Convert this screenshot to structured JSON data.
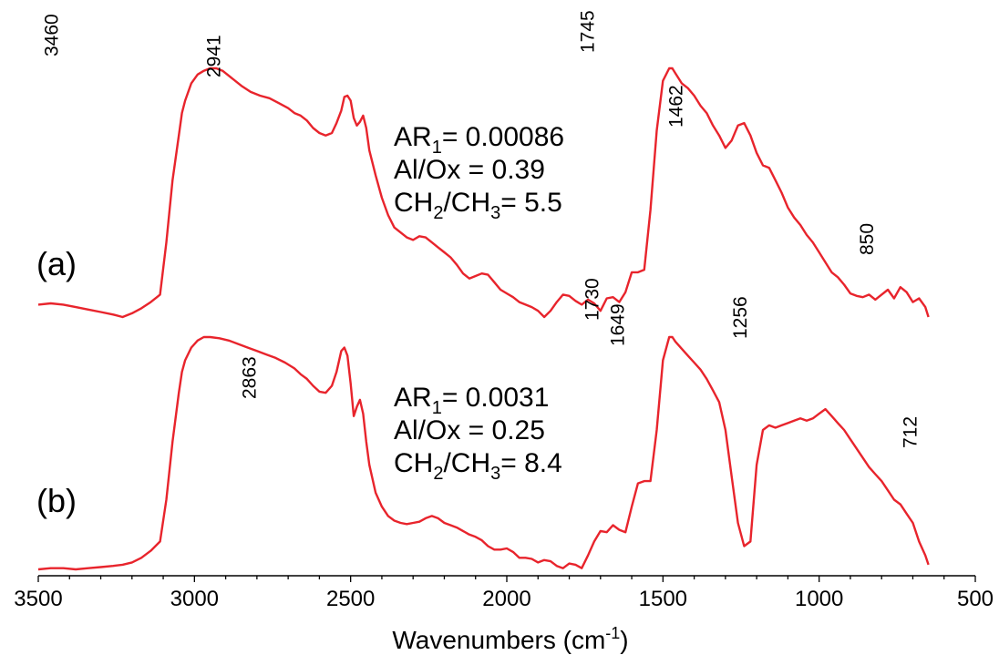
{
  "chart_data": {
    "type": "line",
    "title": "",
    "xlabel": "Wavenumbers (cm",
    "xlabel_sup": "-1",
    "xlabel_close": ")",
    "ylabel": "",
    "xlim": [
      3500,
      500
    ],
    "x_reversed": true,
    "x_ticks": [
      3500,
      3000,
      2500,
      2000,
      1500,
      1000,
      500
    ],
    "y_axis_visible": false,
    "grid": false,
    "line_color": "#e8242c",
    "series": [
      {
        "label": "(a)",
        "annotations": [
          {
            "base": "AR",
            "sub": "1",
            "rest": "= 0.00086"
          },
          {
            "base": "Al/Ox = 0.39",
            "sub": "",
            "rest": ""
          },
          {
            "base": "CH",
            "sub": "2",
            "mid": "/CH",
            "sub2": "3",
            "rest": "= 5.5"
          }
        ],
        "peak_labels": [
          "3460",
          "2941",
          "1745",
          "1462",
          "850"
        ],
        "peak_positions": [
          3460,
          2941,
          1745,
          1462,
          850
        ],
        "points": [
          [
            3500,
            0.05
          ],
          [
            3460,
            0.055
          ],
          [
            3420,
            0.05
          ],
          [
            3380,
            0.04
          ],
          [
            3340,
            0.03
          ],
          [
            3300,
            0.02
          ],
          [
            3260,
            0.01
          ],
          [
            3230,
            0.0
          ],
          [
            3200,
            0.015
          ],
          [
            3170,
            0.035
          ],
          [
            3140,
            0.06
          ],
          [
            3120,
            0.08
          ],
          [
            3110,
            0.09
          ],
          [
            3090,
            0.3
          ],
          [
            3070,
            0.55
          ],
          [
            3050,
            0.73
          ],
          [
            3040,
            0.82
          ],
          [
            3030,
            0.87
          ],
          [
            3010,
            0.94
          ],
          [
            2990,
            0.975
          ],
          [
            2970,
            0.99
          ],
          [
            2950,
            1.0
          ],
          [
            2930,
            1.0
          ],
          [
            2910,
            0.99
          ],
          [
            2880,
            0.96
          ],
          [
            2850,
            0.93
          ],
          [
            2820,
            0.905
          ],
          [
            2790,
            0.89
          ],
          [
            2760,
            0.88
          ],
          [
            2730,
            0.86
          ],
          [
            2700,
            0.84
          ],
          [
            2680,
            0.82
          ],
          [
            2660,
            0.81
          ],
          [
            2640,
            0.79
          ],
          [
            2620,
            0.76
          ],
          [
            2600,
            0.74
          ],
          [
            2580,
            0.73
          ],
          [
            2560,
            0.74
          ],
          [
            2545,
            0.78
          ],
          [
            2530,
            0.83
          ],
          [
            2520,
            0.885
          ],
          [
            2510,
            0.89
          ],
          [
            2500,
            0.87
          ],
          [
            2490,
            0.8
          ],
          [
            2480,
            0.77
          ],
          [
            2470,
            0.785
          ],
          [
            2460,
            0.81
          ],
          [
            2450,
            0.76
          ],
          [
            2440,
            0.67
          ],
          [
            2420,
            0.57
          ],
          [
            2400,
            0.48
          ],
          [
            2380,
            0.41
          ],
          [
            2360,
            0.36
          ],
          [
            2340,
            0.34
          ],
          [
            2320,
            0.32
          ],
          [
            2300,
            0.31
          ],
          [
            2280,
            0.325
          ],
          [
            2260,
            0.32
          ],
          [
            2240,
            0.3
          ],
          [
            2220,
            0.28
          ],
          [
            2200,
            0.26
          ],
          [
            2180,
            0.24
          ],
          [
            2160,
            0.21
          ],
          [
            2140,
            0.175
          ],
          [
            2120,
            0.155
          ],
          [
            2100,
            0.165
          ],
          [
            2080,
            0.175
          ],
          [
            2060,
            0.17
          ],
          [
            2040,
            0.14
          ],
          [
            2020,
            0.11
          ],
          [
            2000,
            0.095
          ],
          [
            1980,
            0.08
          ],
          [
            1960,
            0.06
          ],
          [
            1940,
            0.05
          ],
          [
            1920,
            0.04
          ],
          [
            1900,
            0.025
          ],
          [
            1880,
            0.0
          ],
          [
            1860,
            0.025
          ],
          [
            1840,
            0.06
          ],
          [
            1820,
            0.09
          ],
          [
            1800,
            0.085
          ],
          [
            1780,
            0.065
          ],
          [
            1760,
            0.05
          ],
          [
            1740,
            0.07
          ],
          [
            1720,
            0.055
          ],
          [
            1700,
            0.025
          ],
          [
            1680,
            0.075
          ],
          [
            1660,
            0.08
          ],
          [
            1640,
            0.06
          ],
          [
            1620,
            0.1
          ],
          [
            1600,
            0.18
          ],
          [
            1580,
            0.18
          ],
          [
            1560,
            0.19
          ],
          [
            1540,
            0.43
          ],
          [
            1520,
            0.75
          ],
          [
            1500,
            0.95
          ],
          [
            1480,
            1.0
          ],
          [
            1470,
            1.0
          ],
          [
            1460,
            0.98
          ],
          [
            1440,
            0.94
          ],
          [
            1420,
            0.92
          ],
          [
            1400,
            0.89
          ],
          [
            1380,
            0.85
          ],
          [
            1360,
            0.82
          ],
          [
            1340,
            0.77
          ],
          [
            1320,
            0.73
          ],
          [
            1300,
            0.68
          ],
          [
            1280,
            0.71
          ],
          [
            1260,
            0.77
          ],
          [
            1240,
            0.78
          ],
          [
            1220,
            0.73
          ],
          [
            1200,
            0.66
          ],
          [
            1180,
            0.61
          ],
          [
            1160,
            0.6
          ],
          [
            1140,
            0.55
          ],
          [
            1120,
            0.5
          ],
          [
            1100,
            0.44
          ],
          [
            1080,
            0.4
          ],
          [
            1060,
            0.37
          ],
          [
            1040,
            0.33
          ],
          [
            1020,
            0.3
          ],
          [
            1000,
            0.26
          ],
          [
            980,
            0.22
          ],
          [
            960,
            0.18
          ],
          [
            940,
            0.16
          ],
          [
            920,
            0.13
          ],
          [
            900,
            0.095
          ],
          [
            880,
            0.085
          ],
          [
            860,
            0.08
          ],
          [
            840,
            0.09
          ],
          [
            820,
            0.07
          ],
          [
            800,
            0.09
          ],
          [
            780,
            0.11
          ],
          [
            760,
            0.075
          ],
          [
            740,
            0.12
          ],
          [
            720,
            0.1
          ],
          [
            700,
            0.06
          ],
          [
            680,
            0.075
          ],
          [
            660,
            0.04
          ],
          [
            650,
            0.0
          ]
        ]
      },
      {
        "label": "(b)",
        "annotations": [
          {
            "base": "AR",
            "sub": "1",
            "rest": "= 0.0031"
          },
          {
            "base": "Al/Ox = 0.25",
            "sub": "",
            "rest": ""
          },
          {
            "base": "CH",
            "sub": "2",
            "mid": "/CH",
            "sub2": "3",
            "rest": "= 8.4"
          }
        ],
        "peak_labels": [
          "2863",
          "1730",
          "1649",
          "1256",
          "712"
        ],
        "peak_positions": [
          2863,
          1730,
          1649,
          1256,
          712
        ],
        "points": [
          [
            3500,
            0.0
          ],
          [
            3460,
            0.005
          ],
          [
            3420,
            0.005
          ],
          [
            3380,
            0.0
          ],
          [
            3340,
            0.005
          ],
          [
            3300,
            0.01
          ],
          [
            3260,
            0.015
          ],
          [
            3230,
            0.02
          ],
          [
            3200,
            0.03
          ],
          [
            3170,
            0.05
          ],
          [
            3140,
            0.08
          ],
          [
            3110,
            0.12
          ],
          [
            3090,
            0.3
          ],
          [
            3070,
            0.55
          ],
          [
            3050,
            0.76
          ],
          [
            3040,
            0.85
          ],
          [
            3030,
            0.9
          ],
          [
            3010,
            0.955
          ],
          [
            2990,
            0.985
          ],
          [
            2970,
            1.0
          ],
          [
            2950,
            1.0
          ],
          [
            2920,
            0.995
          ],
          [
            2890,
            0.985
          ],
          [
            2860,
            0.97
          ],
          [
            2830,
            0.955
          ],
          [
            2800,
            0.94
          ],
          [
            2770,
            0.925
          ],
          [
            2740,
            0.91
          ],
          [
            2710,
            0.89
          ],
          [
            2680,
            0.865
          ],
          [
            2660,
            0.84
          ],
          [
            2640,
            0.82
          ],
          [
            2620,
            0.79
          ],
          [
            2600,
            0.765
          ],
          [
            2580,
            0.76
          ],
          [
            2560,
            0.79
          ],
          [
            2545,
            0.85
          ],
          [
            2530,
            0.94
          ],
          [
            2520,
            0.955
          ],
          [
            2510,
            0.92
          ],
          [
            2500,
            0.8
          ],
          [
            2490,
            0.66
          ],
          [
            2480,
            0.7
          ],
          [
            2470,
            0.73
          ],
          [
            2460,
            0.67
          ],
          [
            2450,
            0.55
          ],
          [
            2440,
            0.45
          ],
          [
            2420,
            0.33
          ],
          [
            2400,
            0.27
          ],
          [
            2380,
            0.23
          ],
          [
            2360,
            0.21
          ],
          [
            2340,
            0.2
          ],
          [
            2320,
            0.195
          ],
          [
            2300,
            0.2
          ],
          [
            2280,
            0.205
          ],
          [
            2260,
            0.22
          ],
          [
            2240,
            0.23
          ],
          [
            2220,
            0.22
          ],
          [
            2200,
            0.2
          ],
          [
            2180,
            0.19
          ],
          [
            2160,
            0.18
          ],
          [
            2140,
            0.165
          ],
          [
            2120,
            0.15
          ],
          [
            2100,
            0.14
          ],
          [
            2080,
            0.125
          ],
          [
            2060,
            0.1
          ],
          [
            2040,
            0.085
          ],
          [
            2020,
            0.085
          ],
          [
            2000,
            0.09
          ],
          [
            1980,
            0.075
          ],
          [
            1960,
            0.05
          ],
          [
            1940,
            0.05
          ],
          [
            1920,
            0.045
          ],
          [
            1900,
            0.03
          ],
          [
            1880,
            0.04
          ],
          [
            1860,
            0.035
          ],
          [
            1840,
            0.015
          ],
          [
            1820,
            0.005
          ],
          [
            1800,
            0.025
          ],
          [
            1780,
            0.02
          ],
          [
            1760,
            0.005
          ],
          [
            1740,
            0.06
          ],
          [
            1720,
            0.12
          ],
          [
            1700,
            0.165
          ],
          [
            1680,
            0.16
          ],
          [
            1660,
            0.19
          ],
          [
            1640,
            0.17
          ],
          [
            1620,
            0.16
          ],
          [
            1600,
            0.27
          ],
          [
            1580,
            0.37
          ],
          [
            1560,
            0.38
          ],
          [
            1540,
            0.38
          ],
          [
            1520,
            0.6
          ],
          [
            1500,
            0.9
          ],
          [
            1480,
            1.0
          ],
          [
            1470,
            1.0
          ],
          [
            1460,
            0.98
          ],
          [
            1440,
            0.95
          ],
          [
            1420,
            0.92
          ],
          [
            1400,
            0.89
          ],
          [
            1380,
            0.86
          ],
          [
            1360,
            0.82
          ],
          [
            1340,
            0.77
          ],
          [
            1320,
            0.72
          ],
          [
            1300,
            0.6
          ],
          [
            1280,
            0.4
          ],
          [
            1260,
            0.2
          ],
          [
            1240,
            0.1
          ],
          [
            1220,
            0.12
          ],
          [
            1200,
            0.45
          ],
          [
            1180,
            0.6
          ],
          [
            1160,
            0.62
          ],
          [
            1140,
            0.61
          ],
          [
            1120,
            0.62
          ],
          [
            1100,
            0.63
          ],
          [
            1080,
            0.64
          ],
          [
            1060,
            0.65
          ],
          [
            1040,
            0.64
          ],
          [
            1020,
            0.65
          ],
          [
            1000,
            0.67
          ],
          [
            980,
            0.69
          ],
          [
            960,
            0.66
          ],
          [
            940,
            0.63
          ],
          [
            920,
            0.6
          ],
          [
            900,
            0.56
          ],
          [
            880,
            0.52
          ],
          [
            860,
            0.48
          ],
          [
            840,
            0.44
          ],
          [
            820,
            0.41
          ],
          [
            800,
            0.38
          ],
          [
            780,
            0.34
          ],
          [
            760,
            0.3
          ],
          [
            740,
            0.28
          ],
          [
            720,
            0.24
          ],
          [
            700,
            0.2
          ],
          [
            680,
            0.12
          ],
          [
            660,
            0.06
          ],
          [
            650,
            0.02
          ]
        ]
      }
    ]
  }
}
